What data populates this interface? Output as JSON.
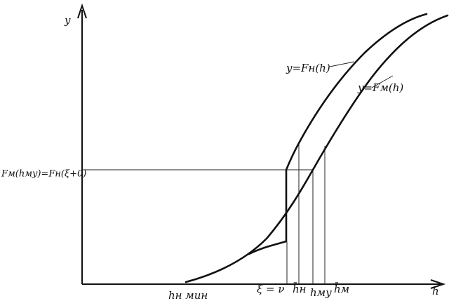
{
  "axes": {
    "y_label": "y",
    "x_label": "h"
  },
  "curves": {
    "upper": "y=Fн(h)",
    "lower": "y=Fм(h)"
  },
  "level_label": "Fм(hмy)=Fн(ξ+0)",
  "x_marks": [
    "hн мин",
    "ξ = ν",
    "h̄н",
    "hмy",
    "h̄м"
  ]
}
